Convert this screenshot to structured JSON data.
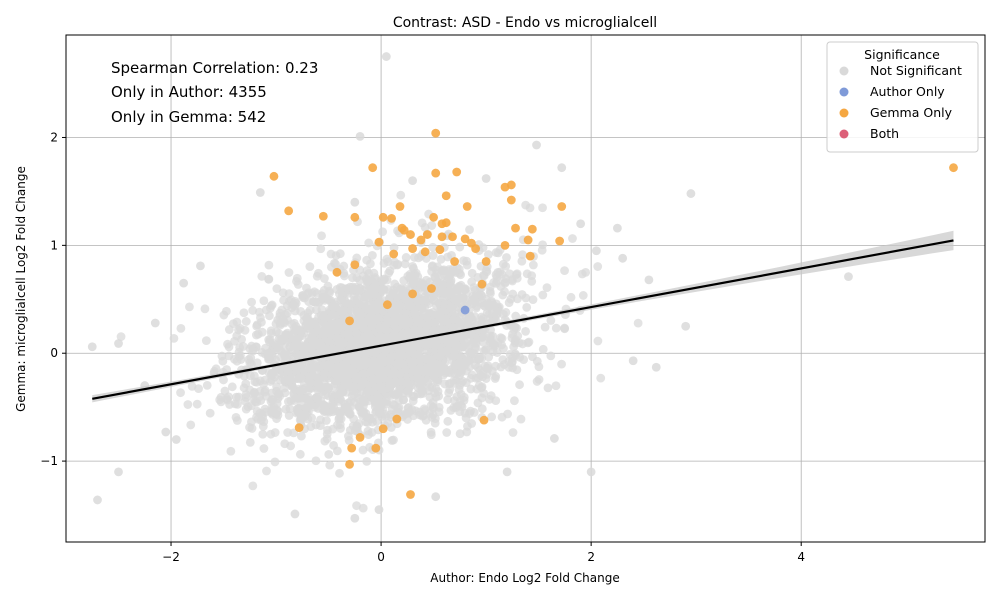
{
  "chart_data": {
    "type": "scatter",
    "title": "Contrast: ASD - Endo vs microglialcell",
    "xlabel": "Author: Endo Log2 Fold Change",
    "ylabel": "Gemma: microglialcell Log2 Fold Change",
    "xlim": [
      -3.0,
      5.75
    ],
    "ylim": [
      -1.75,
      2.95
    ],
    "x_ticks": [
      -2,
      0,
      2,
      4
    ],
    "y_ticks": [
      -1,
      0,
      1,
      2
    ],
    "grid": true,
    "annotations": [
      "Spearman Correlation: 0.23",
      "Only in Author: 4355",
      "Only in Gemma: 542"
    ],
    "legend": {
      "title": "Significance",
      "placement": "top-right",
      "entries": [
        {
          "label": "Not Significant",
          "color": "#d9d9d9"
        },
        {
          "label": "Author Only",
          "color": "#7f9ad8"
        },
        {
          "label": "Gemma Only",
          "color": "#f5a742"
        },
        {
          "label": "Both",
          "color": "#dc5f78"
        }
      ]
    },
    "regression": {
      "x_range": [
        -2.75,
        5.45
      ],
      "intercept": 0.07,
      "slope": 0.179,
      "color": "#000000"
    },
    "series": [
      {
        "name": "Gemma Only",
        "color": "#f5a742",
        "points": [
          [
            0.52,
            2.04
          ],
          [
            -1.02,
            1.64
          ],
          [
            -0.08,
            1.72
          ],
          [
            0.52,
            1.67
          ],
          [
            0.72,
            1.68
          ],
          [
            1.18,
            1.54
          ],
          [
            1.24,
            1.56
          ],
          [
            1.24,
            1.42
          ],
          [
            0.62,
            1.46
          ],
          [
            1.72,
            1.36
          ],
          [
            0.82,
            1.36
          ],
          [
            -0.88,
            1.32
          ],
          [
            0.18,
            1.36
          ],
          [
            -0.55,
            1.27
          ],
          [
            -0.25,
            1.26
          ],
          [
            0.02,
            1.26
          ],
          [
            0.1,
            1.25
          ],
          [
            0.5,
            1.26
          ],
          [
            0.62,
            1.21
          ],
          [
            0.58,
            1.2
          ],
          [
            0.2,
            1.16
          ],
          [
            0.22,
            1.14
          ],
          [
            0.28,
            1.1
          ],
          [
            0.44,
            1.1
          ],
          [
            0.58,
            1.08
          ],
          [
            1.28,
            1.16
          ],
          [
            1.44,
            1.15
          ],
          [
            0.68,
            1.08
          ],
          [
            0.8,
            1.06
          ],
          [
            0.86,
            1.02
          ],
          [
            -0.02,
            1.03
          ],
          [
            0.38,
            1.05
          ],
          [
            1.18,
            1.0
          ],
          [
            1.4,
            1.05
          ],
          [
            1.7,
            1.04
          ],
          [
            0.3,
            0.97
          ],
          [
            0.42,
            0.94
          ],
          [
            0.56,
            0.96
          ],
          [
            0.9,
            0.97
          ],
          [
            0.12,
            0.92
          ],
          [
            -0.25,
            0.82
          ],
          [
            0.7,
            0.85
          ],
          [
            1.0,
            0.85
          ],
          [
            1.42,
            0.9
          ],
          [
            0.96,
            0.64
          ],
          [
            0.48,
            0.6
          ],
          [
            -0.42,
            0.75
          ],
          [
            0.3,
            0.55
          ],
          [
            0.06,
            0.45
          ],
          [
            -0.3,
            0.3
          ],
          [
            -0.78,
            -0.69
          ],
          [
            0.15,
            -0.61
          ],
          [
            -0.2,
            -0.78
          ],
          [
            -0.28,
            -0.88
          ],
          [
            -0.05,
            -0.88
          ],
          [
            -0.3,
            -1.03
          ],
          [
            0.02,
            -0.7
          ],
          [
            0.28,
            -1.31
          ],
          [
            5.45,
            1.72
          ],
          [
            0.98,
            -0.62
          ]
        ]
      },
      {
        "name": "Author Only",
        "color": "#7f9ad8",
        "points": [
          [
            0.8,
            0.4
          ]
        ]
      }
    ],
    "background_series": {
      "name": "Not Significant",
      "color": "#d9d9d9",
      "count": 3200,
      "center": [
        0.0,
        0.07
      ],
      "x_spread": 0.62,
      "y_spread": 0.36,
      "outliers": [
        [
          0.05,
          2.75
        ],
        [
          -0.2,
          2.01
        ],
        [
          1.48,
          1.93
        ],
        [
          1.72,
          1.72
        ],
        [
          -1.15,
          1.49
        ],
        [
          2.95,
          1.48
        ],
        [
          -0.25,
          1.4
        ],
        [
          0.3,
          1.6
        ],
        [
          1.0,
          1.62
        ],
        [
          2.25,
          1.16
        ],
        [
          2.3,
          0.88
        ],
        [
          2.55,
          0.68
        ],
        [
          4.45,
          0.71
        ],
        [
          2.9,
          0.25
        ],
        [
          2.62,
          -0.13
        ],
        [
          2.4,
          -0.07
        ],
        [
          2.0,
          -1.1
        ],
        [
          1.65,
          -0.79
        ],
        [
          -2.7,
          -1.36
        ],
        [
          -2.5,
          -1.1
        ],
        [
          -2.75,
          0.06
        ],
        [
          -2.5,
          0.09
        ],
        [
          -2.15,
          0.28
        ],
        [
          -0.82,
          -1.49
        ],
        [
          -0.25,
          -1.53
        ],
        [
          0.52,
          -1.33
        ],
        [
          -0.02,
          -1.45
        ],
        [
          -1.88,
          0.65
        ],
        [
          -1.72,
          0.81
        ],
        [
          -2.05,
          -0.73
        ],
        [
          1.9,
          1.2
        ],
        [
          2.05,
          0.95
        ],
        [
          1.2,
          -1.1
        ],
        [
          -1.95,
          -0.8
        ],
        [
          -2.25,
          -0.3
        ]
      ]
    }
  }
}
